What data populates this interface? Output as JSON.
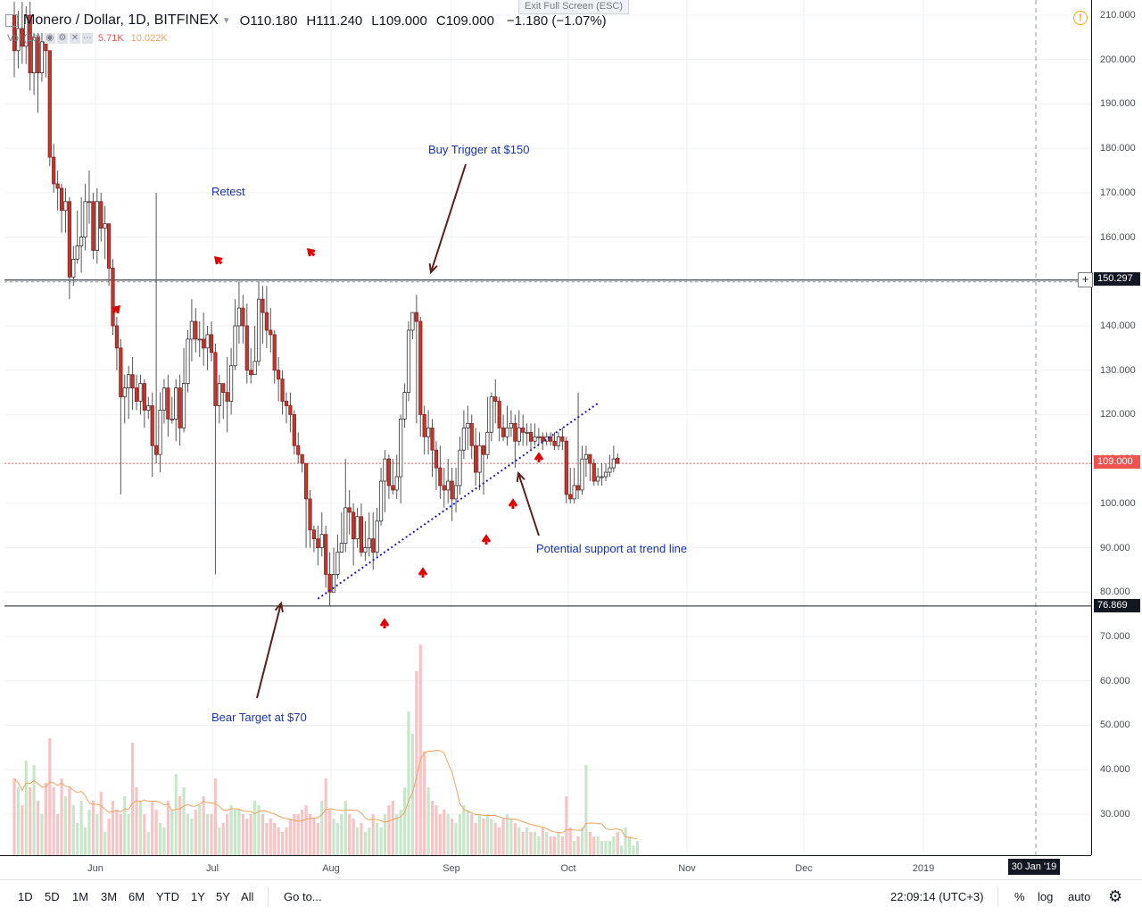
{
  "header": {
    "exit_fullscreen": "Exit Full Screen (ESC)",
    "symbol": "Monero / Dollar, 1D, BITFINEX",
    "open_label": "O",
    "open": "110.180",
    "high_label": "H",
    "high": "111.240",
    "low_label": "L",
    "low": "109.000",
    "close_label": "C",
    "close": "109.000",
    "change": "−1.180 (−1.07%)",
    "vol_label": "Vol (10)",
    "vol_value": "5.71K",
    "vol_ma": "10.022K"
  },
  "toolbar": {
    "ranges": [
      "1D",
      "5D",
      "1M",
      "3M",
      "6M",
      "YTD",
      "1Y",
      "5Y",
      "All"
    ],
    "goto": "Go to...",
    "clock": "22:09:14 (UTC+3)",
    "percent": "%",
    "log": "log",
    "auto": "auto"
  },
  "colors": {
    "up": "#26a69a",
    "down": "#ef5350",
    "up_volume": "#c8e6c9",
    "down_volume": "#f8c3c4",
    "annotation_text": "#1a33b3",
    "arrow": "#5a1f1a",
    "marker": "#e00000",
    "trendline": "#1a1acc",
    "ma_line": "#f0a35e"
  },
  "annotations": {
    "buy_trigger": "Buy Trigger at $150",
    "retest": "Retest",
    "potential_support": "Potential support at trend line",
    "bear_target": "Bear Target at $70"
  },
  "price_tags": {
    "resistance": "150.297",
    "last": "109.000",
    "support": "76.869"
  },
  "crosshair_date": "30 Jan '19",
  "chart_data": {
    "type": "candlestick",
    "title": "Monero / Dollar, 1D, BITFINEX",
    "x_axis_labels": [
      "Jun",
      "Jul",
      "Aug",
      "Sep",
      "Oct",
      "Nov",
      "Dec",
      "2019"
    ],
    "y_axis_labels": [
      "210.000",
      "200.000",
      "190.000",
      "180.000",
      "170.000",
      "160.000",
      "150.000",
      "140.000",
      "130.000",
      "120.000",
      "110.000",
      "100.000",
      "90.000",
      "80.000",
      "70.000",
      "60.000",
      "50.000",
      "40.000",
      "30.000"
    ],
    "ylim": [
      20.5,
      213.5
    ],
    "grid": true,
    "horizontal_levels": [
      150.297,
      76.869
    ],
    "last_price": 109.0,
    "trendline": {
      "from": [
        77,
        78.5
      ],
      "to": [
        123,
        122.5
      ]
    },
    "candles": [
      [
        210,
        202,
        213,
        196
      ],
      [
        202,
        207,
        211,
        198
      ],
      [
        207,
        203,
        213,
        199
      ],
      [
        203,
        210,
        212,
        199
      ],
      [
        210,
        197,
        213,
        193
      ],
      [
        197,
        205,
        206,
        192
      ],
      [
        205,
        197,
        206,
        188
      ],
      [
        197,
        204,
        206,
        195
      ],
      [
        204,
        202,
        205,
        196
      ],
      [
        202,
        178,
        202,
        176
      ],
      [
        178,
        172,
        181,
        170
      ],
      [
        172,
        171,
        175,
        166
      ],
      [
        171,
        166,
        172,
        161
      ],
      [
        166,
        168,
        171,
        161
      ],
      [
        168,
        151,
        169,
        146
      ],
      [
        151,
        155,
        158,
        149
      ],
      [
        155,
        158,
        166,
        154
      ],
      [
        158,
        160,
        169,
        152
      ],
      [
        160,
        168,
        172,
        157
      ],
      [
        168,
        168,
        175,
        163
      ],
      [
        168,
        157,
        170,
        155
      ],
      [
        157,
        168,
        171,
        154
      ],
      [
        168,
        162,
        170,
        159
      ],
      [
        162,
        163,
        167,
        155
      ],
      [
        163,
        153,
        163,
        149
      ],
      [
        153,
        140,
        155,
        138
      ],
      [
        140,
        135,
        142,
        130
      ],
      [
        135,
        124,
        137,
        102
      ],
      [
        124,
        126,
        129,
        118
      ],
      [
        126,
        129,
        131,
        119
      ],
      [
        129,
        126,
        133,
        121
      ],
      [
        126,
        123,
        129,
        121
      ],
      [
        123,
        127,
        129,
        120
      ],
      [
        127,
        121,
        128,
        117
      ],
      [
        121,
        122,
        124,
        119
      ],
      [
        122,
        113,
        125,
        106
      ],
      [
        113,
        111,
        170,
        109
      ],
      [
        111,
        121,
        125,
        107
      ],
      [
        121,
        126,
        128,
        118
      ],
      [
        126,
        119,
        129,
        115
      ],
      [
        119,
        119,
        124,
        118
      ],
      [
        119,
        126,
        128,
        114
      ],
      [
        126,
        117,
        129,
        113
      ],
      [
        117,
        127,
        135,
        116
      ],
      [
        127,
        137,
        139,
        125
      ],
      [
        137,
        141,
        146,
        132
      ],
      [
        141,
        137,
        144,
        134
      ],
      [
        137,
        137,
        141,
        133
      ],
      [
        137,
        135,
        143,
        131
      ],
      [
        135,
        138,
        140,
        130
      ],
      [
        138,
        134,
        141,
        132
      ],
      [
        134,
        122,
        136,
        84
      ],
      [
        122,
        127,
        129,
        118
      ],
      [
        127,
        125,
        127,
        119
      ],
      [
        125,
        123,
        133,
        116
      ],
      [
        123,
        131,
        135,
        120
      ],
      [
        131,
        140,
        146,
        130
      ],
      [
        140,
        144,
        150,
        136
      ],
      [
        144,
        140,
        147,
        136
      ],
      [
        140,
        130,
        145,
        127
      ],
      [
        130,
        129,
        135,
        127
      ],
      [
        129,
        132,
        140,
        129
      ],
      [
        132,
        146,
        150,
        131
      ],
      [
        146,
        143,
        149,
        136
      ],
      [
        143,
        139,
        149,
        135
      ],
      [
        139,
        138,
        144,
        134
      ],
      [
        138,
        130,
        139,
        127
      ],
      [
        130,
        128,
        133,
        123
      ],
      [
        128,
        123,
        130,
        120
      ],
      [
        123,
        122,
        125,
        118
      ],
      [
        122,
        120,
        125,
        116
      ],
      [
        120,
        113,
        121,
        111
      ],
      [
        113,
        111,
        116,
        109
      ],
      [
        111,
        109,
        111,
        107
      ],
      [
        109,
        101,
        109,
        90
      ],
      [
        101,
        94,
        103,
        90
      ],
      [
        94,
        92,
        95,
        89
      ],
      [
        92,
        90,
        95,
        86
      ],
      [
        90,
        93,
        98,
        88
      ],
      [
        93,
        84,
        95,
        81
      ],
      [
        84,
        80,
        89,
        77
      ],
      [
        80,
        84,
        90,
        80
      ],
      [
        84,
        89,
        93,
        83
      ],
      [
        89,
        91,
        98,
        89
      ],
      [
        91,
        99,
        110,
        89
      ],
      [
        99,
        98,
        103,
        93
      ],
      [
        98,
        92,
        100,
        86
      ],
      [
        92,
        97,
        99,
        90
      ],
      [
        97,
        89,
        100,
        88
      ],
      [
        89,
        90,
        96,
        87
      ],
      [
        90,
        92,
        98,
        88
      ],
      [
        92,
        89,
        98,
        85
      ],
      [
        89,
        96,
        99,
        88
      ],
      [
        96,
        105,
        108,
        95
      ],
      [
        105,
        110,
        112,
        98
      ],
      [
        110,
        104,
        111,
        101
      ],
      [
        104,
        103,
        110,
        102
      ],
      [
        103,
        106,
        111,
        101
      ],
      [
        106,
        119,
        120,
        100
      ],
      [
        119,
        125,
        127,
        117
      ],
      [
        125,
        139,
        141,
        123
      ],
      [
        139,
        143,
        143,
        137
      ],
      [
        143,
        141,
        147,
        118
      ],
      [
        141,
        120,
        142,
        115
      ],
      [
        120,
        115,
        122,
        111
      ],
      [
        115,
        117,
        121,
        111
      ],
      [
        117,
        112,
        119,
        106
      ],
      [
        112,
        108,
        114,
        103
      ],
      [
        108,
        104,
        113,
        101
      ],
      [
        104,
        103,
        108,
        99
      ],
      [
        103,
        105,
        110,
        100
      ],
      [
        105,
        101,
        108,
        96
      ],
      [
        101,
        104,
        108,
        98
      ],
      [
        104,
        112,
        115,
        102
      ],
      [
        112,
        117,
        121,
        110
      ],
      [
        117,
        118,
        122,
        112
      ],
      [
        118,
        113,
        120,
        110
      ],
      [
        113,
        107,
        117,
        104
      ],
      [
        107,
        113,
        116,
        103
      ],
      [
        113,
        111,
        113,
        102
      ],
      [
        111,
        116,
        124,
        110
      ],
      [
        116,
        124,
        125,
        114
      ],
      [
        124,
        123,
        128,
        118
      ],
      [
        123,
        117,
        124,
        114
      ],
      [
        117,
        115,
        120,
        114
      ],
      [
        115,
        117,
        122,
        113
      ],
      [
        117,
        118,
        121,
        115
      ],
      [
        118,
        114,
        120,
        108
      ],
      [
        114,
        117,
        121,
        113
      ],
      [
        117,
        116,
        120,
        113
      ],
      [
        116,
        116,
        118,
        113
      ],
      [
        116,
        114,
        118,
        112
      ],
      [
        114,
        115,
        118,
        113
      ],
      [
        115,
        115,
        117,
        113
      ],
      [
        115,
        114,
        116,
        112
      ],
      [
        114,
        115,
        116,
        113
      ],
      [
        115,
        114,
        116,
        113
      ],
      [
        114,
        113,
        116,
        112
      ],
      [
        113,
        115,
        116,
        112
      ],
      [
        115,
        114,
        117,
        112
      ],
      [
        114,
        102,
        115,
        100
      ],
      [
        102,
        101,
        108,
        100
      ],
      [
        101,
        104,
        108,
        100
      ],
      [
        104,
        103,
        125,
        101
      ],
      [
        103,
        110,
        113,
        102
      ],
      [
        110,
        111,
        113,
        106
      ],
      [
        111,
        109,
        111,
        105
      ],
      [
        109,
        105,
        110,
        104
      ],
      [
        105,
        106,
        108,
        104
      ],
      [
        106,
        106,
        109,
        104
      ],
      [
        106,
        107,
        109,
        105
      ],
      [
        107,
        108,
        111,
        106
      ],
      [
        108,
        110,
        113,
        107
      ],
      [
        110.18,
        109.0,
        111.24,
        109.0
      ]
    ],
    "volume_scale": {
      "label_values": [
        30,
        40,
        50,
        60
      ],
      "note": "right-axis labels 30.000–60.000 also span volume pane"
    },
    "volumes": [
      38,
      36,
      32,
      42,
      36,
      41,
      33,
      30,
      37,
      47,
      36,
      30,
      38,
      34,
      36,
      32,
      28,
      33,
      27,
      31,
      33,
      30,
      35,
      26,
      29,
      33,
      31,
      30,
      34,
      30,
      46,
      36,
      33,
      30,
      26,
      33,
      31,
      28,
      27,
      33,
      31,
      39,
      34,
      36,
      30,
      29,
      31,
      32,
      34,
      30,
      30,
      38,
      27,
      28,
      30,
      32,
      31,
      31,
      30,
      29,
      30,
      33,
      32,
      30,
      28,
      29,
      28,
      27,
      26,
      27,
      29,
      30,
      30,
      31,
      32,
      30,
      29,
      28,
      33,
      38,
      31,
      29,
      28,
      30,
      33,
      30,
      29,
      27,
      28,
      26,
      27,
      30,
      28,
      27,
      30,
      32,
      33,
      30,
      31,
      36,
      53,
      48,
      62,
      68,
      44,
      36,
      33,
      32,
      30,
      31,
      30,
      29,
      28,
      30,
      32,
      31,
      30,
      28,
      30,
      29,
      30,
      29,
      28,
      27,
      29,
      30,
      29,
      28,
      27,
      26,
      27,
      26,
      26,
      25,
      27,
      26,
      25,
      25,
      26,
      25,
      34,
      27,
      24,
      25,
      27,
      41,
      26,
      25,
      25,
      24,
      24,
      24,
      25,
      26,
      23,
      27,
      25,
      23,
      24
    ],
    "volume_ma_note": "orange moving average line of volume"
  }
}
